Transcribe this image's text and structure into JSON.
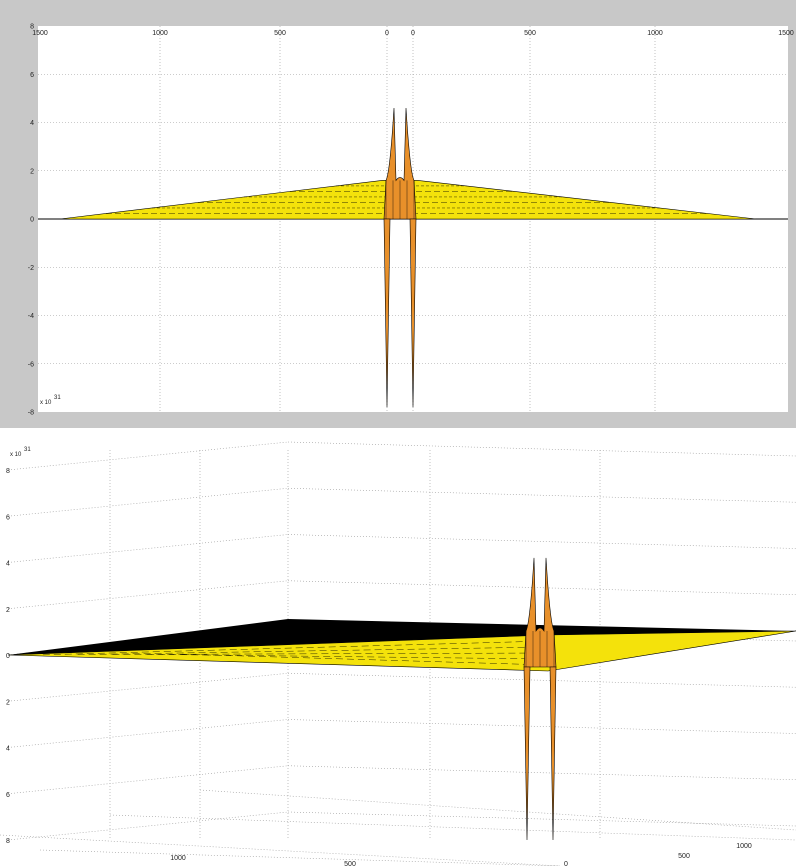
{
  "chart_data": [
    {
      "type": "surface",
      "view": "front",
      "grid": true,
      "exponent_label": "x 10",
      "exponent_power": "31",
      "x_ticks": [
        "1500",
        "1000",
        "500",
        "0",
        "0",
        "500",
        "1000",
        "1500"
      ],
      "z_ticks": [
        "8",
        "6",
        "4",
        "2",
        "0",
        "-2",
        "-4",
        "-6",
        "-8"
      ],
      "zlim": [
        -8,
        8
      ],
      "plateau_height": 1.6,
      "spike_peaks": [
        4.6,
        4.6
      ],
      "spike_troughs": [
        -7.8,
        -7.8
      ],
      "colors": {
        "plateau": "#f4e20b",
        "spike": "#e8902a",
        "edge": "#000000",
        "axes_bg": "#ffffff",
        "frame_bg": "#c8c8c8"
      }
    },
    {
      "type": "surface",
      "view": "3d",
      "grid": true,
      "exponent_label": "x 10",
      "exponent_power": "31",
      "z_ticks": [
        "8",
        "6",
        "4",
        "2",
        "0",
        "2",
        "4",
        "6",
        "8"
      ],
      "x_ticks": [
        "1000",
        "500"
      ],
      "y_ticks": [
        "1000",
        "500",
        "0"
      ],
      "zlim": [
        -8,
        8
      ],
      "spike_peaks": [
        4.2,
        4.2
      ],
      "spike_troughs": [
        -8,
        -8
      ],
      "colors": {
        "plateau": "#f4e20b",
        "spike": "#e8902a",
        "edge": "#000000",
        "axes_bg": "#ffffff",
        "frame_bg": "#c8c8c8"
      }
    }
  ]
}
